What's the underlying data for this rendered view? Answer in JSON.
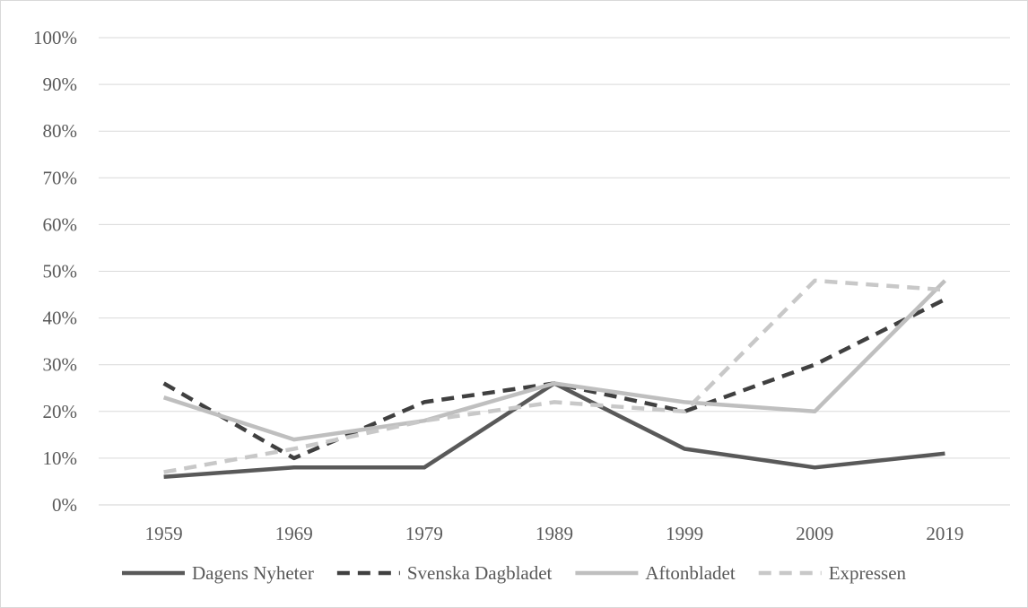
{
  "chart_data": {
    "type": "line",
    "title": "",
    "xlabel": "",
    "ylabel": "",
    "categories": [
      "1959",
      "1969",
      "1979",
      "1989",
      "1999",
      "2009",
      "2019"
    ],
    "ylim": [
      0,
      100
    ],
    "y_ticks": [
      0,
      10,
      20,
      30,
      40,
      50,
      60,
      70,
      80,
      90,
      100
    ],
    "y_tick_labels": [
      "0%",
      "10%",
      "20%",
      "30%",
      "40%",
      "50%",
      "60%",
      "70%",
      "80%",
      "90%",
      "100%"
    ],
    "grid": true,
    "legend_position": "bottom",
    "series": [
      {
        "name": "Dagens Nyheter",
        "values": [
          6,
          8,
          8,
          26,
          12,
          8,
          11
        ],
        "color": "#595959",
        "dash": "solid"
      },
      {
        "name": "Svenska Dagbladet",
        "values": [
          26,
          10,
          22,
          26,
          20,
          30,
          44
        ],
        "color": "#404040",
        "dash": "dashed"
      },
      {
        "name": "Aftonbladet",
        "values": [
          23,
          14,
          18,
          26,
          22,
          20,
          48
        ],
        "color": "#bfbfbf",
        "dash": "solid"
      },
      {
        "name": "Expressen",
        "values": [
          7,
          12,
          18,
          22,
          20,
          48,
          46
        ],
        "color": "#c8c8c8",
        "dash": "dashed"
      }
    ]
  }
}
